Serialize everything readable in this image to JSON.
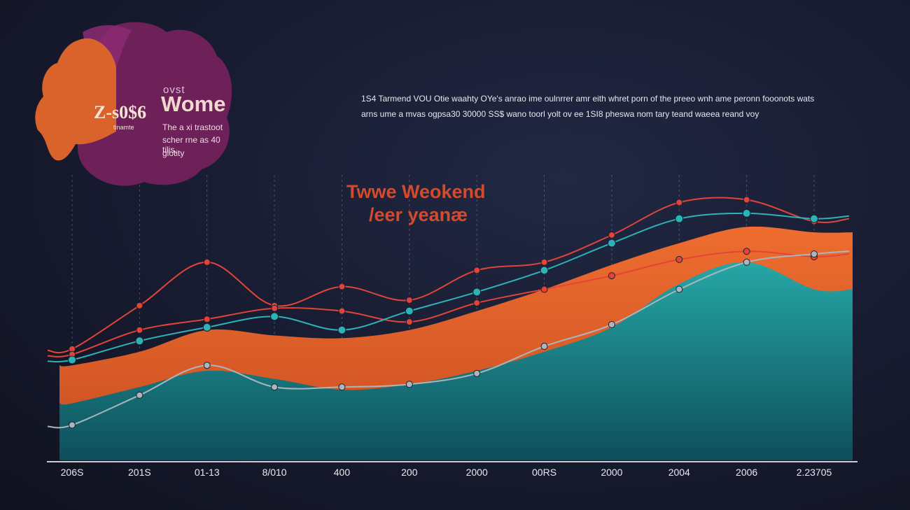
{
  "badge": {
    "eyebrow": "ovst",
    "title": "Wome",
    "stat": "Z-s0$6",
    "stat_note": "tinamte",
    "lines": [
      "The a xi trastoot",
      "scher rne as 40 tilis,",
      "giotity"
    ],
    "colors": {
      "orange": "#d9632a",
      "purple": "#6c1f57",
      "magenta": "#8c2a72"
    }
  },
  "description": {
    "line1": "1S4 Tarmend VOU Otie waahty OYe's anrao ime oulnrrer amr eith whret porn of the preeo wnh ame peronn fooonots wats",
    "line2": "arns ume a mvas ogpsa30 30000 SS$ wano toorl yolt ov ee 1SI8 pheswa nom tary teand waeea reand voy"
  },
  "chart_data": {
    "type": "line",
    "title": "Twwe Weokend",
    "subtitle": "/eer yeanæ",
    "x_tick_labels": [
      "206S",
      "201S",
      "01-13",
      "8/010",
      "400",
      "200",
      "2000",
      "00RS",
      "2000",
      "2004",
      "2006",
      "2.23705"
    ],
    "x": [
      0,
      1,
      2,
      3,
      4,
      5,
      6,
      7,
      8,
      9,
      10,
      11
    ],
    "ylim": [
      0,
      100
    ],
    "grid": "vertical dashed",
    "legend": "none",
    "series": [
      {
        "style": "area",
        "color": "#e4632c",
        "values": [
          35,
          40,
          48,
          46,
          45,
          48,
          55,
          63,
          72,
          80,
          86,
          84
        ]
      },
      {
        "style": "area",
        "color": "#1e9b99",
        "values": [
          21,
          27,
          33,
          30,
          26,
          28,
          33,
          40,
          49,
          65,
          73,
          63
        ]
      },
      {
        "style": "line",
        "color": "#e34438",
        "values": [
          41,
          57,
          73,
          57,
          64,
          59,
          70,
          73,
          83,
          95,
          96,
          88
        ]
      },
      {
        "style": "line",
        "color": "#e34438",
        "values": [
          39,
          48,
          52,
          56,
          55,
          51,
          58,
          63,
          68,
          74,
          77,
          75
        ]
      },
      {
        "style": "line",
        "color": "#2db3b5",
        "values": [
          37,
          44,
          49,
          53,
          48,
          55,
          62,
          70,
          80,
          89,
          91,
          89
        ]
      },
      {
        "style": "line",
        "color": "#aab6bd",
        "values": [
          13,
          24,
          35,
          27,
          27,
          28,
          32,
          42,
          50,
          63,
          73,
          76
        ]
      }
    ]
  }
}
